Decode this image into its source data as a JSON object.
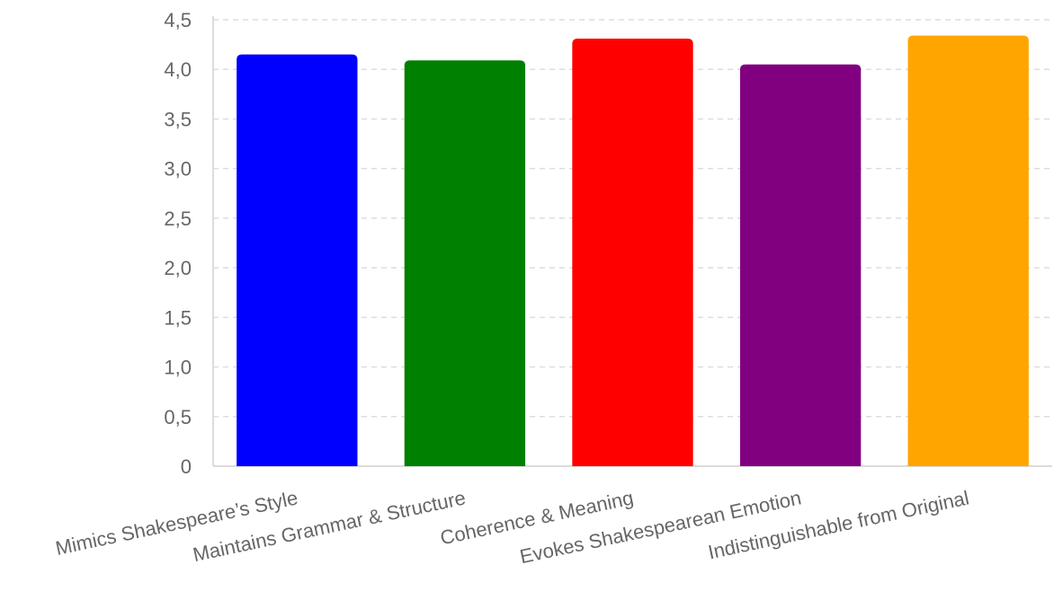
{
  "chart_data": {
    "type": "bar",
    "title": "",
    "xlabel": "",
    "ylabel": "",
    "categories": [
      "Mimics Shakespeare’s Style",
      "Maintains Grammar & Structure",
      "Coherence & Meaning",
      "Evokes Shakespearean Emotion",
      "Indistinguishable from Original"
    ],
    "values": [
      4.15,
      4.09,
      4.31,
      4.05,
      4.34
    ],
    "colors": [
      "#0000ff",
      "#008000",
      "#ff0000",
      "#800080",
      "#ffa500"
    ],
    "ylim": [
      0,
      4.5
    ],
    "yticks": [
      0,
      0.5,
      1.0,
      1.5,
      2.0,
      2.5,
      3.0,
      3.5,
      4.0,
      4.5
    ],
    "ytick_labels": [
      "0",
      "0,5",
      "1,0",
      "1,5",
      "2,0",
      "2,5",
      "3,0",
      "3,5",
      "4,0",
      "4,5"
    ],
    "grid": true,
    "legend": "none"
  }
}
